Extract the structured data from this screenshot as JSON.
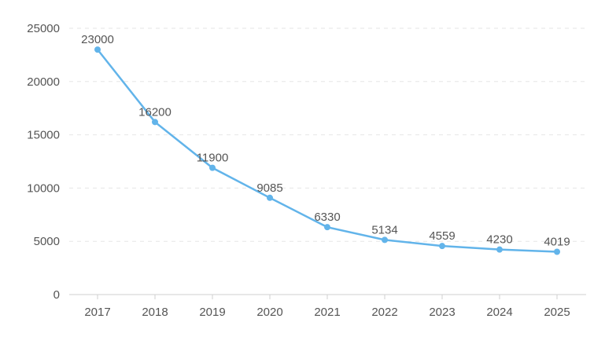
{
  "chart_data": {
    "type": "line",
    "title": "",
    "xlabel": "",
    "ylabel": "",
    "categories": [
      "2017",
      "2018",
      "2019",
      "2020",
      "2021",
      "2022",
      "2023",
      "2024",
      "2025"
    ],
    "series": [
      {
        "values": [
          23000,
          16200,
          11900,
          9085,
          6330,
          5134,
          4559,
          4230,
          4019
        ],
        "color": "#62b4ea"
      }
    ],
    "data_labels": [
      "23000",
      "16200",
      "11900",
      "9085",
      "6330",
      "5134",
      "4559",
      "4230",
      "4019"
    ],
    "y_ticks": [
      0,
      5000,
      10000,
      15000,
      20000,
      25000
    ],
    "ylim": [
      0,
      25000
    ],
    "grid": true,
    "grid_style": "dashed",
    "legend": "none"
  }
}
